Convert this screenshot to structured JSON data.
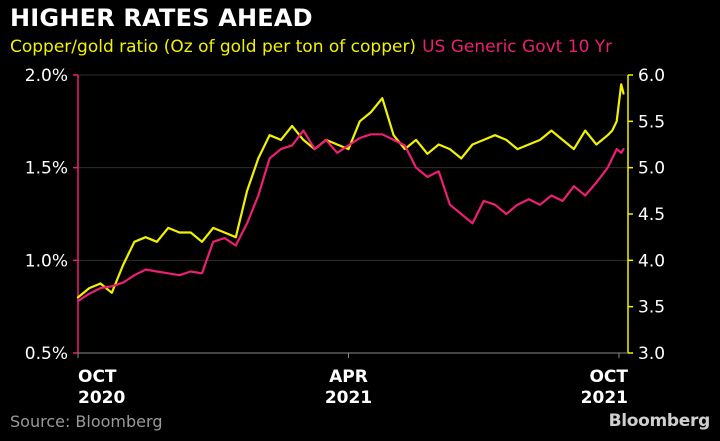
{
  "title": "HIGHER RATES AHEAD",
  "legend": {
    "series1": "Copper/gold ratio (Oz of gold per ton of copper)",
    "series2": "US Generic Govt 10 Yr"
  },
  "source": "Source: Bloomberg",
  "brand": "Bloomberg",
  "colors": {
    "copper_gold": "#f2f200",
    "us10y": "#ec1f72",
    "axis": "#ffffff",
    "grid": "#2e2e2e",
    "source": "#9a9a9a"
  },
  "chart_data": {
    "type": "line",
    "title": "HIGHER RATES AHEAD",
    "x_ticks": [
      {
        "value": 0,
        "line1": "OCT",
        "line2": "2020"
      },
      {
        "value": 6,
        "line1": "APR",
        "line2": "2021"
      },
      {
        "value": 12,
        "line1": "OCT",
        "line2": "2021"
      }
    ],
    "xlim": [
      0,
      12.2
    ],
    "y_left": {
      "ticks": [
        "0.5%",
        "1.0%",
        "1.5%",
        "2.0%"
      ],
      "tick_values": [
        0.5,
        1.0,
        1.5,
        2.0
      ],
      "ylim": [
        0.5,
        2.0
      ]
    },
    "y_right": {
      "ticks": [
        "3.0",
        "3.5",
        "4.0",
        "4.5",
        "5.0",
        "5.5",
        "6.0"
      ],
      "tick_values": [
        3.0,
        3.5,
        4.0,
        4.5,
        5.0,
        5.5,
        6.0
      ],
      "ylim": [
        3.0,
        6.0
      ]
    },
    "grid": true,
    "series": [
      {
        "name": "Copper/gold ratio (Oz of gold per ton of copper)",
        "axis": "right",
        "color": "#f2f200",
        "x": [
          0,
          0.25,
          0.5,
          0.75,
          1,
          1.25,
          1.5,
          1.75,
          2,
          2.25,
          2.5,
          2.75,
          3,
          3.25,
          3.5,
          3.75,
          4,
          4.25,
          4.5,
          4.75,
          5,
          5.25,
          5.5,
          5.75,
          6,
          6.25,
          6.5,
          6.75,
          7,
          7.25,
          7.5,
          7.75,
          8,
          8.25,
          8.5,
          8.75,
          9,
          9.25,
          9.5,
          9.75,
          10,
          10.25,
          10.5,
          10.75,
          11,
          11.25,
          11.5,
          11.75,
          11.85,
          11.95,
          12.05,
          12.1
        ],
        "y": [
          3.6,
          3.7,
          3.75,
          3.65,
          3.95,
          4.2,
          4.25,
          4.2,
          4.35,
          4.3,
          4.3,
          4.2,
          4.35,
          4.3,
          4.25,
          4.75,
          5.1,
          5.35,
          5.3,
          5.45,
          5.3,
          5.2,
          5.3,
          5.25,
          5.2,
          5.5,
          5.6,
          5.75,
          5.35,
          5.2,
          5.3,
          5.15,
          5.25,
          5.2,
          5.1,
          5.25,
          5.3,
          5.35,
          5.3,
          5.2,
          5.25,
          5.3,
          5.4,
          5.3,
          5.2,
          5.4,
          5.25,
          5.35,
          5.4,
          5.5,
          5.9,
          5.8
        ]
      },
      {
        "name": "US Generic Govt 10 Yr",
        "axis": "left",
        "color": "#ec1f72",
        "x": [
          0,
          0.25,
          0.5,
          0.75,
          1,
          1.25,
          1.5,
          1.75,
          2,
          2.25,
          2.5,
          2.75,
          3,
          3.25,
          3.5,
          3.75,
          4,
          4.25,
          4.5,
          4.75,
          5,
          5.25,
          5.5,
          5.75,
          6,
          6.25,
          6.5,
          6.75,
          7,
          7.25,
          7.5,
          7.75,
          8,
          8.25,
          8.5,
          8.75,
          9,
          9.25,
          9.5,
          9.75,
          10,
          10.25,
          10.5,
          10.75,
          11,
          11.25,
          11.5,
          11.75,
          11.85,
          11.95,
          12.05,
          12.1
        ],
        "y": [
          0.78,
          0.82,
          0.85,
          0.86,
          0.88,
          0.92,
          0.95,
          0.94,
          0.93,
          0.92,
          0.94,
          0.93,
          1.1,
          1.12,
          1.08,
          1.2,
          1.35,
          1.55,
          1.6,
          1.62,
          1.7,
          1.6,
          1.65,
          1.58,
          1.62,
          1.66,
          1.68,
          1.68,
          1.65,
          1.62,
          1.5,
          1.45,
          1.48,
          1.3,
          1.25,
          1.2,
          1.32,
          1.3,
          1.25,
          1.3,
          1.33,
          1.3,
          1.35,
          1.32,
          1.4,
          1.35,
          1.42,
          1.5,
          1.55,
          1.6,
          1.58,
          1.6
        ]
      }
    ]
  }
}
